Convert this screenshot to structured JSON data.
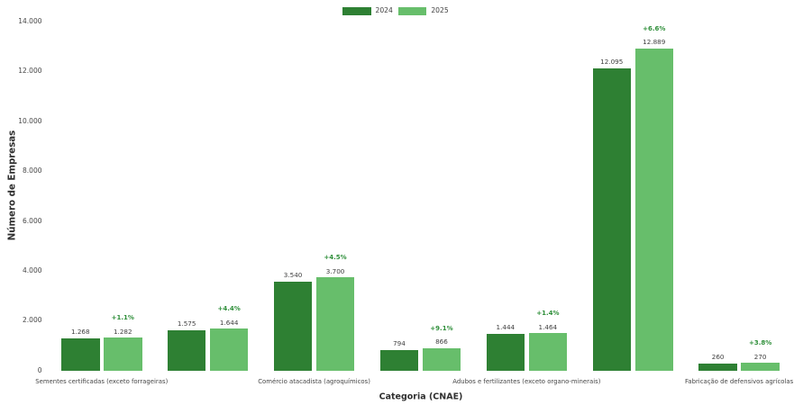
{
  "chart_data": {
    "type": "bar",
    "title": "",
    "xlabel": "Categoria (CNAE)",
    "ylabel": "Número de Empresas",
    "categories": [
      "Sementes certificadas (exceto forrageiras)",
      "",
      "Comércio atacadista (agroquímicos)",
      "",
      "Adubos e fertilizantes (exceto organo-minerais)",
      "",
      "Fabricação de defensivos agrícolas"
    ],
    "series": [
      {
        "name": "2024",
        "color": "#2e8033",
        "values": [
          1268,
          1575,
          3540,
          794,
          1444,
          12095,
          260
        ]
      },
      {
        "name": "2025",
        "color": "#67be6b",
        "values": [
          1282,
          1644,
          3700,
          866,
          1464,
          12889,
          270
        ]
      }
    ],
    "value_labels": {
      "2024": [
        "1.268",
        "1.575",
        "3.540",
        "794",
        "1.444",
        "12.095",
        "260"
      ],
      "2025": [
        "1.282",
        "1.644",
        "3.700",
        "866",
        "1.464",
        "12.889",
        "270"
      ]
    },
    "pct_change_labels": [
      "+1.1%",
      "+4.4%",
      "+4.5%",
      "+9.1%",
      "+1.4%",
      "+6.6%",
      "+3.8%"
    ],
    "pct_label_color": "#2f8f3a",
    "ylim": [
      0,
      14000
    ],
    "ytick_step": 2000,
    "ytick_labels": [
      "0",
      "2.000",
      "4.000",
      "6.000",
      "8.000",
      "10.000",
      "12.000",
      "14.000"
    ],
    "grid": false,
    "legend_position": "top-center"
  }
}
